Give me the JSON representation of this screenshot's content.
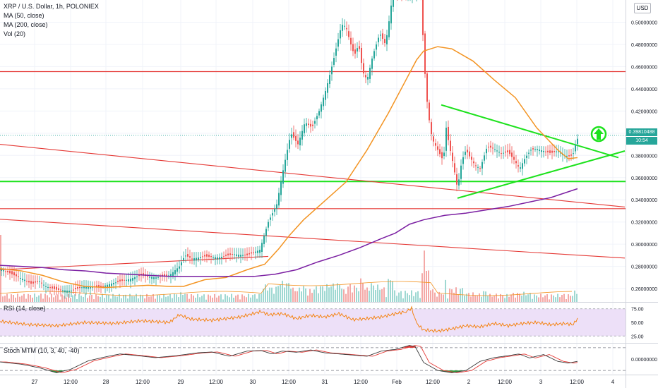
{
  "header": {
    "title": "XRP / U.S. Dollar, 1h, POLONIEX",
    "ma50": "MA (50, close)",
    "ma200": "MA (200, close)",
    "vol": "Vol (20)",
    "currency": "USD"
  },
  "price_tags": {
    "last": "0.39810488",
    "second": "10:54"
  },
  "rsi_label": "RSI (14, close)",
  "stoch_label": "Stoch MTM (10, 3, 40, -40)",
  "colors": {
    "up": "#26a69a",
    "down": "#ef5350",
    "ma50": "#f39423",
    "ma200": "#7b1fa2",
    "trend_green": "#1de21d",
    "trend_red": "#e53935",
    "rsi": "#f57c00",
    "rsi_band": "#ede0f8"
  },
  "chart_data": {
    "type": "candlestick",
    "title": "XRP / U.S. Dollar, 1h, POLONIEX",
    "price_axis": {
      "ticks": [
        "0.50000000",
        "0.48000000",
        "0.46000000",
        "0.44000000",
        "0.42000000",
        "0.40000000",
        "0.38000000",
        "0.36000000",
        "0.34000000",
        "0.32000000",
        "0.30000000",
        "0.28000000",
        "0.26000000"
      ],
      "range": [
        0.248,
        0.52
      ]
    },
    "time_axis": {
      "ticks": [
        "27",
        "12:00",
        "28",
        "12:00",
        "29",
        "12:00",
        "30",
        "12:00",
        "31",
        "12:00",
        "Feb",
        "12:00",
        "2",
        "12:00",
        "3",
        "12:00",
        "4"
      ]
    },
    "close_path": [
      [
        0,
        0.278
      ],
      [
        20,
        0.272
      ],
      [
        35,
        0.268
      ],
      [
        45,
        0.264
      ],
      [
        55,
        0.267
      ],
      [
        65,
        0.262
      ],
      [
        80,
        0.259
      ],
      [
        100,
        0.258
      ],
      [
        120,
        0.262
      ],
      [
        140,
        0.261
      ],
      [
        160,
        0.265
      ],
      [
        180,
        0.268
      ],
      [
        200,
        0.272
      ],
      [
        220,
        0.27
      ],
      [
        240,
        0.272
      ],
      [
        254,
        0.28
      ],
      [
        262,
        0.29
      ],
      [
        272,
        0.287
      ],
      [
        290,
        0.289
      ],
      [
        310,
        0.288
      ],
      [
        330,
        0.291
      ],
      [
        350,
        0.29
      ],
      [
        368,
        0.295
      ],
      [
        380,
        0.32
      ],
      [
        392,
        0.336
      ],
      [
        402,
        0.37
      ],
      [
        412,
        0.4
      ],
      [
        422,
        0.39
      ],
      [
        432,
        0.41
      ],
      [
        442,
        0.405
      ],
      [
        452,
        0.42
      ],
      [
        462,
        0.44
      ],
      [
        472,
        0.465
      ],
      [
        478,
        0.482
      ],
      [
        484,
        0.498
      ],
      [
        490,
        0.496
      ],
      [
        496,
        0.482
      ],
      [
        502,
        0.47
      ],
      [
        508,
        0.48
      ],
      [
        514,
        0.455
      ],
      [
        520,
        0.448
      ],
      [
        528,
        0.47
      ],
      [
        538,
        0.49
      ],
      [
        546,
        0.48
      ],
      [
        552,
        0.505
      ],
      [
        556,
        0.525
      ],
      [
        597,
        0.525
      ],
      [
        600,
        0.47
      ],
      [
        606,
        0.42
      ],
      [
        612,
        0.395
      ],
      [
        620,
        0.385
      ],
      [
        628,
        0.375
      ],
      [
        632,
        0.405
      ],
      [
        636,
        0.39
      ],
      [
        642,
        0.372
      ],
      [
        648,
        0.35
      ],
      [
        654,
        0.375
      ],
      [
        660,
        0.385
      ],
      [
        666,
        0.378
      ],
      [
        672,
        0.372
      ],
      [
        680,
        0.368
      ],
      [
        690,
        0.388
      ],
      [
        700,
        0.386
      ],
      [
        710,
        0.382
      ],
      [
        720,
        0.383
      ],
      [
        728,
        0.376
      ],
      [
        736,
        0.368
      ],
      [
        744,
        0.378
      ],
      [
        752,
        0.385
      ],
      [
        760,
        0.386
      ],
      [
        770,
        0.384
      ],
      [
        780,
        0.382
      ],
      [
        790,
        0.384
      ],
      [
        800,
        0.38
      ],
      [
        808,
        0.379
      ],
      [
        812,
        0.382
      ],
      [
        816,
        0.392
      ],
      [
        820,
        0.398
      ]
    ],
    "ma50": [
      [
        0,
        0.278
      ],
      [
        30,
        0.276
      ],
      [
        60,
        0.272
      ],
      [
        90,
        0.266
      ],
      [
        120,
        0.262
      ],
      [
        150,
        0.261
      ],
      [
        180,
        0.262
      ],
      [
        210,
        0.263
      ],
      [
        240,
        0.262
      ],
      [
        260,
        0.262
      ],
      [
        290,
        0.268
      ],
      [
        320,
        0.27
      ],
      [
        350,
        0.277
      ],
      [
        375,
        0.282
      ],
      [
        395,
        0.296
      ],
      [
        410,
        0.308
      ],
      [
        430,
        0.322
      ],
      [
        460,
        0.339
      ],
      [
        490,
        0.356
      ],
      [
        520,
        0.385
      ],
      [
        550,
        0.418
      ],
      [
        575,
        0.448
      ],
      [
        590,
        0.466
      ],
      [
        600,
        0.474
      ],
      [
        620,
        0.478
      ],
      [
        640,
        0.476
      ],
      [
        670,
        0.465
      ],
      [
        700,
        0.448
      ],
      [
        730,
        0.432
      ],
      [
        760,
        0.405
      ],
      [
        790,
        0.385
      ],
      [
        805,
        0.377
      ],
      [
        818,
        0.378
      ]
    ],
    "ma200": [
      [
        0,
        0.281
      ],
      [
        30,
        0.28
      ],
      [
        60,
        0.279
      ],
      [
        90,
        0.277
      ],
      [
        120,
        0.276
      ],
      [
        150,
        0.274
      ],
      [
        180,
        0.273
      ],
      [
        210,
        0.272
      ],
      [
        240,
        0.271
      ],
      [
        270,
        0.271
      ],
      [
        300,
        0.271
      ],
      [
        330,
        0.271
      ],
      [
        360,
        0.271
      ],
      [
        390,
        0.273
      ],
      [
        420,
        0.277
      ],
      [
        450,
        0.284
      ],
      [
        480,
        0.29
      ],
      [
        510,
        0.297
      ],
      [
        540,
        0.305
      ],
      [
        560,
        0.31
      ],
      [
        580,
        0.318
      ],
      [
        600,
        0.322
      ],
      [
        630,
        0.326
      ],
      [
        660,
        0.328
      ],
      [
        690,
        0.331
      ],
      [
        720,
        0.334
      ],
      [
        750,
        0.338
      ],
      [
        780,
        0.342
      ],
      [
        818,
        0.35
      ]
    ],
    "horizontal_lines": [
      {
        "price": 0.4555,
        "color": "#e53935"
      },
      {
        "price": 0.332,
        "color": "#e53935"
      },
      {
        "price": 0.3565,
        "color": "#1de21d"
      }
    ],
    "trend_lines": [
      {
        "from": [
          0,
          0.39
        ],
        "to": [
          885,
          0.3335
        ],
        "color": "#e53935"
      },
      {
        "from": [
          0,
          0.3225
        ],
        "to": [
          885,
          0.2875
        ],
        "color": "#e53935"
      },
      {
        "from": [
          0,
          0.277
        ],
        "to": [
          380,
          0.289
        ],
        "color": "#e53935"
      },
      {
        "from": [
          625,
          0.4255
        ],
        "to": [
          876,
          0.378
        ],
        "color": "#1de21d"
      },
      {
        "from": [
          648,
          0.3415
        ],
        "to": [
          885,
          0.384
        ],
        "color": "#1de21d"
      }
    ],
    "rsi": {
      "label": "RSI (14, close)",
      "ticks": [
        "75.00",
        "50.00",
        "25.00"
      ],
      "range": [
        15,
        85
      ],
      "values": [
        [
          0,
          52
        ],
        [
          40,
          46
        ],
        [
          80,
          44
        ],
        [
          120,
          50
        ],
        [
          160,
          48
        ],
        [
          200,
          53
        ],
        [
          240,
          50
        ],
        [
          254,
          64
        ],
        [
          270,
          56
        ],
        [
          300,
          54
        ],
        [
          340,
          60
        ],
        [
          370,
          70
        ],
        [
          380,
          64
        ],
        [
          400,
          66
        ],
        [
          420,
          57
        ],
        [
          440,
          63
        ],
        [
          460,
          60
        ],
        [
          480,
          66
        ],
        [
          500,
          55
        ],
        [
          520,
          57
        ],
        [
          540,
          60
        ],
        [
          560,
          66
        ],
        [
          575,
          70
        ],
        [
          583,
          76
        ],
        [
          590,
          48
        ],
        [
          600,
          36
        ],
        [
          620,
          34
        ],
        [
          640,
          38
        ],
        [
          660,
          44
        ],
        [
          680,
          42
        ],
        [
          700,
          48
        ],
        [
          720,
          44
        ],
        [
          740,
          48
        ],
        [
          760,
          50
        ],
        [
          780,
          46
        ],
        [
          800,
          48
        ],
        [
          812,
          46
        ],
        [
          818,
          58
        ]
      ]
    },
    "stoch": {
      "label": "Stoch MTM (10, 3, 40, -40)",
      "ticks": [
        "0.00000000"
      ],
      "range": [
        -52,
        52
      ],
      "values": [
        [
          0,
          -10
        ],
        [
          30,
          -18
        ],
        [
          55,
          -30
        ],
        [
          80,
          -48
        ],
        [
          100,
          -36
        ],
        [
          125,
          -6
        ],
        [
          150,
          8
        ],
        [
          170,
          18
        ],
        [
          195,
          12
        ],
        [
          220,
          5
        ],
        [
          250,
          12
        ],
        [
          280,
          22
        ],
        [
          300,
          25
        ],
        [
          325,
          10
        ],
        [
          350,
          28
        ],
        [
          370,
          30
        ],
        [
          385,
          18
        ],
        [
          400,
          28
        ],
        [
          420,
          24
        ],
        [
          440,
          32
        ],
        [
          460,
          22
        ],
        [
          480,
          18
        ],
        [
          500,
          14
        ],
        [
          520,
          10
        ],
        [
          540,
          28
        ],
        [
          560,
          34
        ],
        [
          580,
          48
        ],
        [
          588,
          44
        ],
        [
          600,
          -12
        ],
        [
          620,
          -40
        ],
        [
          640,
          -48
        ],
        [
          660,
          -40
        ],
        [
          680,
          -8
        ],
        [
          700,
          5
        ],
        [
          720,
          12
        ],
        [
          735,
          18
        ],
        [
          750,
          4
        ],
        [
          770,
          16
        ],
        [
          790,
          -8
        ],
        [
          805,
          -14
        ],
        [
          818,
          -8
        ]
      ]
    },
    "last_price": 0.3981
  }
}
